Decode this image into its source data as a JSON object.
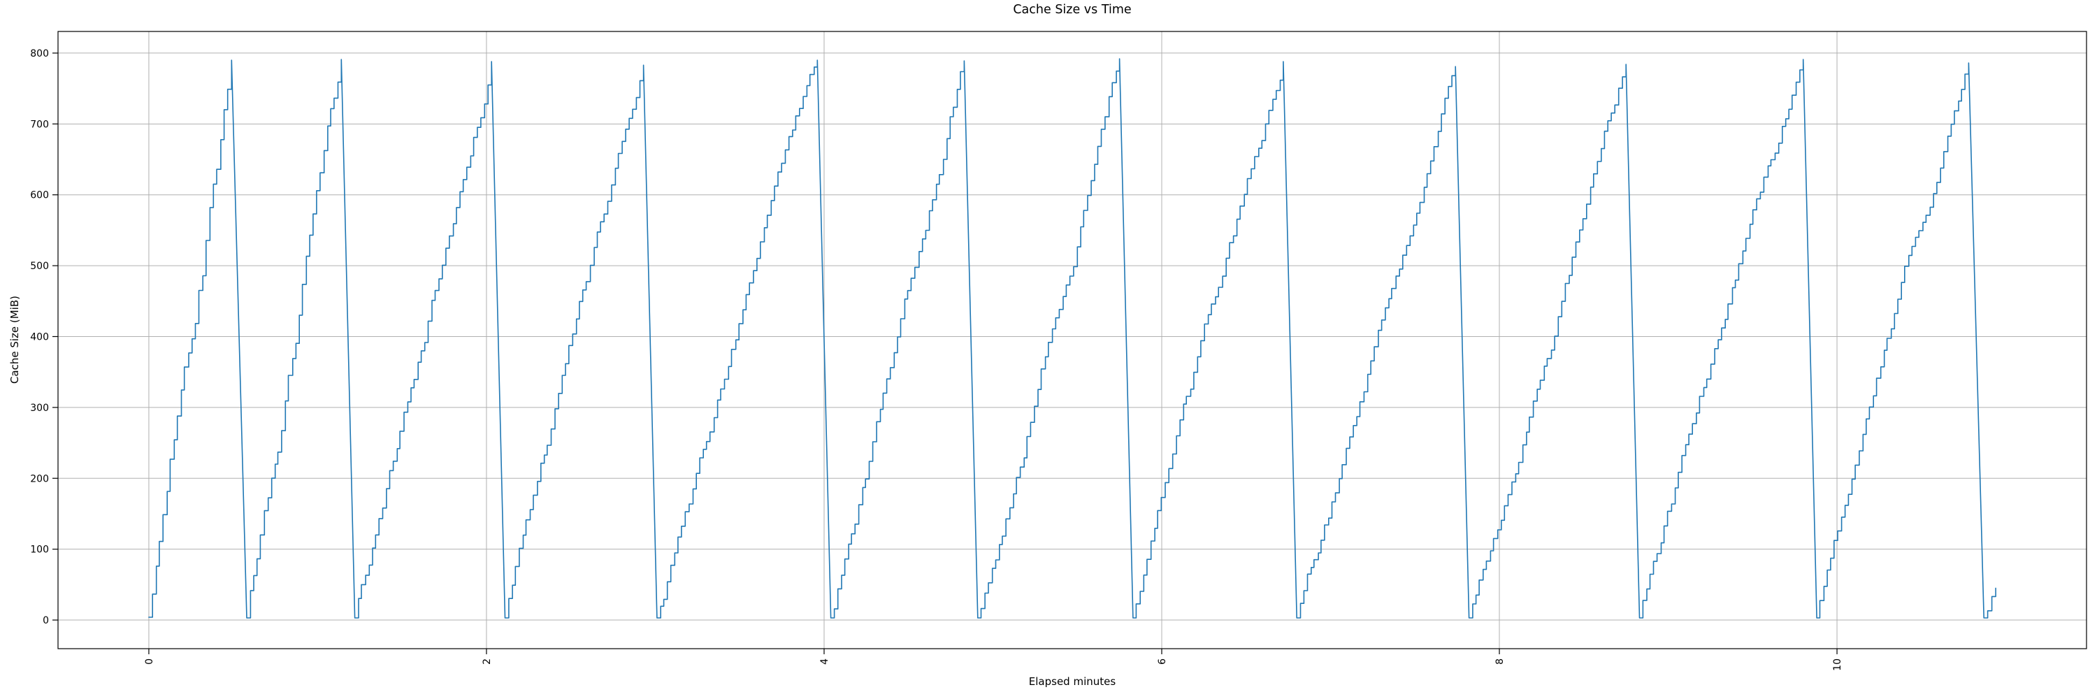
{
  "chart_data": {
    "type": "line",
    "title": "Cache Size vs Time",
    "xlabel": "Elapsed minutes",
    "ylabel": "Cache Size (MiB)",
    "legend": null,
    "grid": true,
    "grid_color": "#b0b0b0",
    "line_color": "#1f77b4",
    "background_color": "#ffffff",
    "xlim": [
      -0.538,
      11.478
    ],
    "ylim": [
      -40.4,
      830.5
    ],
    "xticks": [
      0,
      2,
      4,
      6,
      8,
      10
    ],
    "yticks": [
      0,
      100,
      200,
      300,
      400,
      500,
      600,
      700,
      800
    ],
    "xtick_rotation_deg": 90,
    "pattern": "staircase sawtooth: cache fills in ~10-20 MiB steps up to ~790 MiB, then rapidly evicts to ~0 and refills",
    "step_size_mib_approx": 15,
    "step_interval_min_approx": 0.021,
    "cycles": [
      {
        "start": 0.0,
        "start_value": 4,
        "peak_time": 0.49,
        "peak": 790,
        "drop_end": 0.58,
        "trough_value": 3
      },
      {
        "start": 0.58,
        "start_value": 3,
        "peak_time": 1.14,
        "peak": 791,
        "drop_end": 1.22,
        "trough_value": 3
      },
      {
        "start": 1.22,
        "start_value": 3,
        "peak_time": 2.03,
        "peak": 788,
        "drop_end": 2.11,
        "trough_value": 3
      },
      {
        "start": 2.11,
        "start_value": 3,
        "peak_time": 2.93,
        "peak": 783,
        "drop_end": 3.01,
        "trough_value": 3
      },
      {
        "start": 3.01,
        "start_value": 3,
        "peak_time": 3.96,
        "peak": 790,
        "drop_end": 4.04,
        "trough_value": 3
      },
      {
        "start": 4.04,
        "start_value": 3,
        "peak_time": 4.83,
        "peak": 789,
        "drop_end": 4.91,
        "trough_value": 3
      },
      {
        "start": 4.91,
        "start_value": 3,
        "peak_time": 5.75,
        "peak": 792,
        "drop_end": 5.83,
        "trough_value": 3
      },
      {
        "start": 5.83,
        "start_value": 3,
        "peak_time": 6.72,
        "peak": 788,
        "drop_end": 6.8,
        "trough_value": 3
      },
      {
        "start": 6.8,
        "start_value": 3,
        "peak_time": 7.74,
        "peak": 781,
        "drop_end": 7.82,
        "trough_value": 3
      },
      {
        "start": 7.82,
        "start_value": 3,
        "peak_time": 8.75,
        "peak": 784,
        "drop_end": 8.83,
        "trough_value": 3
      },
      {
        "start": 8.83,
        "start_value": 3,
        "peak_time": 9.8,
        "peak": 791,
        "drop_end": 9.88,
        "trough_value": 3
      },
      {
        "start": 9.88,
        "start_value": 3,
        "peak_time": 10.78,
        "peak": 786,
        "drop_end": 10.87,
        "trough_value": 3
      }
    ],
    "final_rise": {
      "start": 10.87,
      "start_value": 3,
      "end": 10.94,
      "end_value": 45
    }
  }
}
